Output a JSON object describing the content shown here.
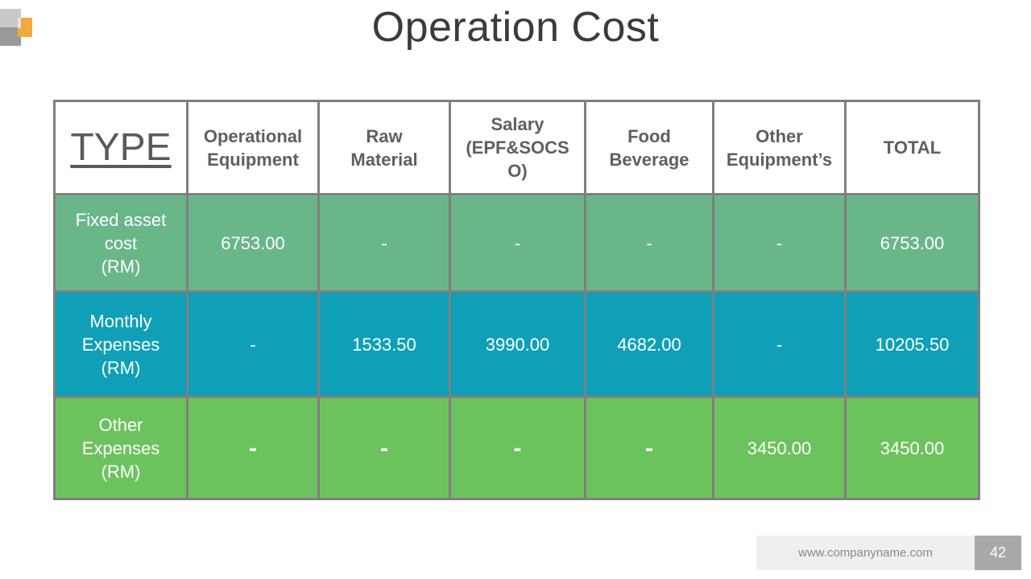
{
  "title": "Operation Cost",
  "table": {
    "headers": {
      "type": "TYPE",
      "operational_equipment": [
        "Operational",
        "Equipment"
      ],
      "raw_material": [
        "Raw",
        "Material"
      ],
      "salary": [
        "Salary",
        "(EPF&SOCS",
        "O)"
      ],
      "food_beverage": [
        "Food",
        "Beverage"
      ],
      "other_equipment": [
        "Other",
        "Equipment’s"
      ],
      "total": "TOTAL"
    },
    "rows": [
      {
        "label": [
          "Fixed asset",
          "cost",
          "(RM)"
        ],
        "cells": [
          "6753.00",
          "-",
          "-",
          "-",
          "-",
          "6753.00"
        ]
      },
      {
        "label": [
          "Monthly",
          "Expenses",
          "(RM)"
        ],
        "cells": [
          "-",
          "1533.50",
          "3990.00",
          "4682.00",
          "-",
          "10205.50"
        ]
      },
      {
        "label": [
          "Other",
          "Expenses",
          "(RM)"
        ],
        "cells": [
          "-",
          "-",
          "-",
          "-",
          "3450.00",
          "3450.00"
        ]
      }
    ]
  },
  "footer": {
    "url": "www.companyname.com",
    "page_number": "42"
  },
  "colors": {
    "row_fixed_asset": "#69b789",
    "row_monthly": "#0fa0b8",
    "row_other": "#6cc35e",
    "accent": "#f2a93b"
  }
}
